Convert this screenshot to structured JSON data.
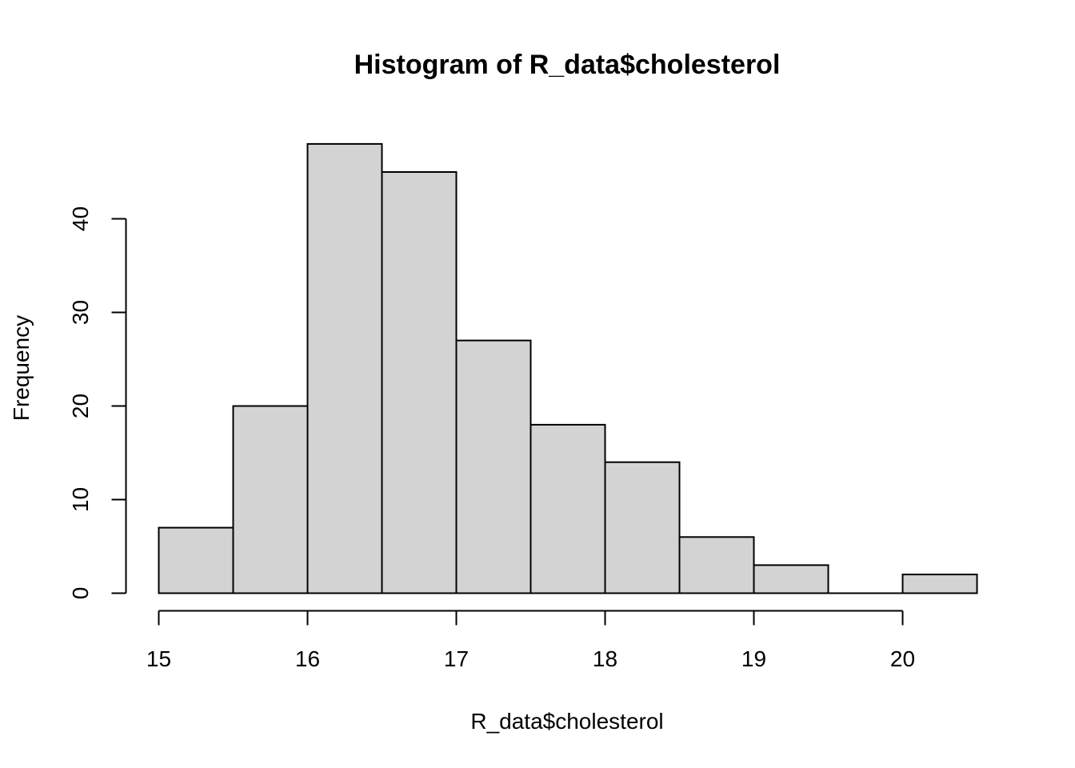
{
  "chart_data": {
    "type": "bar",
    "title": "Histogram of R_data$cholesterol",
    "xlabel": "R_data$cholesterol",
    "ylabel": "Frequency",
    "bin_edges": [
      15,
      15.5,
      16,
      16.5,
      17,
      17.5,
      18,
      18.5,
      19,
      19.5,
      20,
      20.5
    ],
    "values": [
      7,
      20,
      48,
      45,
      27,
      18,
      14,
      6,
      3,
      0,
      2
    ],
    "xlim": [
      15,
      20.5
    ],
    "ylim": [
      0,
      48
    ],
    "x_ticks": [
      15,
      16,
      17,
      18,
      19,
      20
    ],
    "y_ticks": [
      0,
      10,
      20,
      30,
      40
    ],
    "grid": false,
    "bar_fill": "#d3d3d3",
    "bar_stroke": "#000000"
  }
}
